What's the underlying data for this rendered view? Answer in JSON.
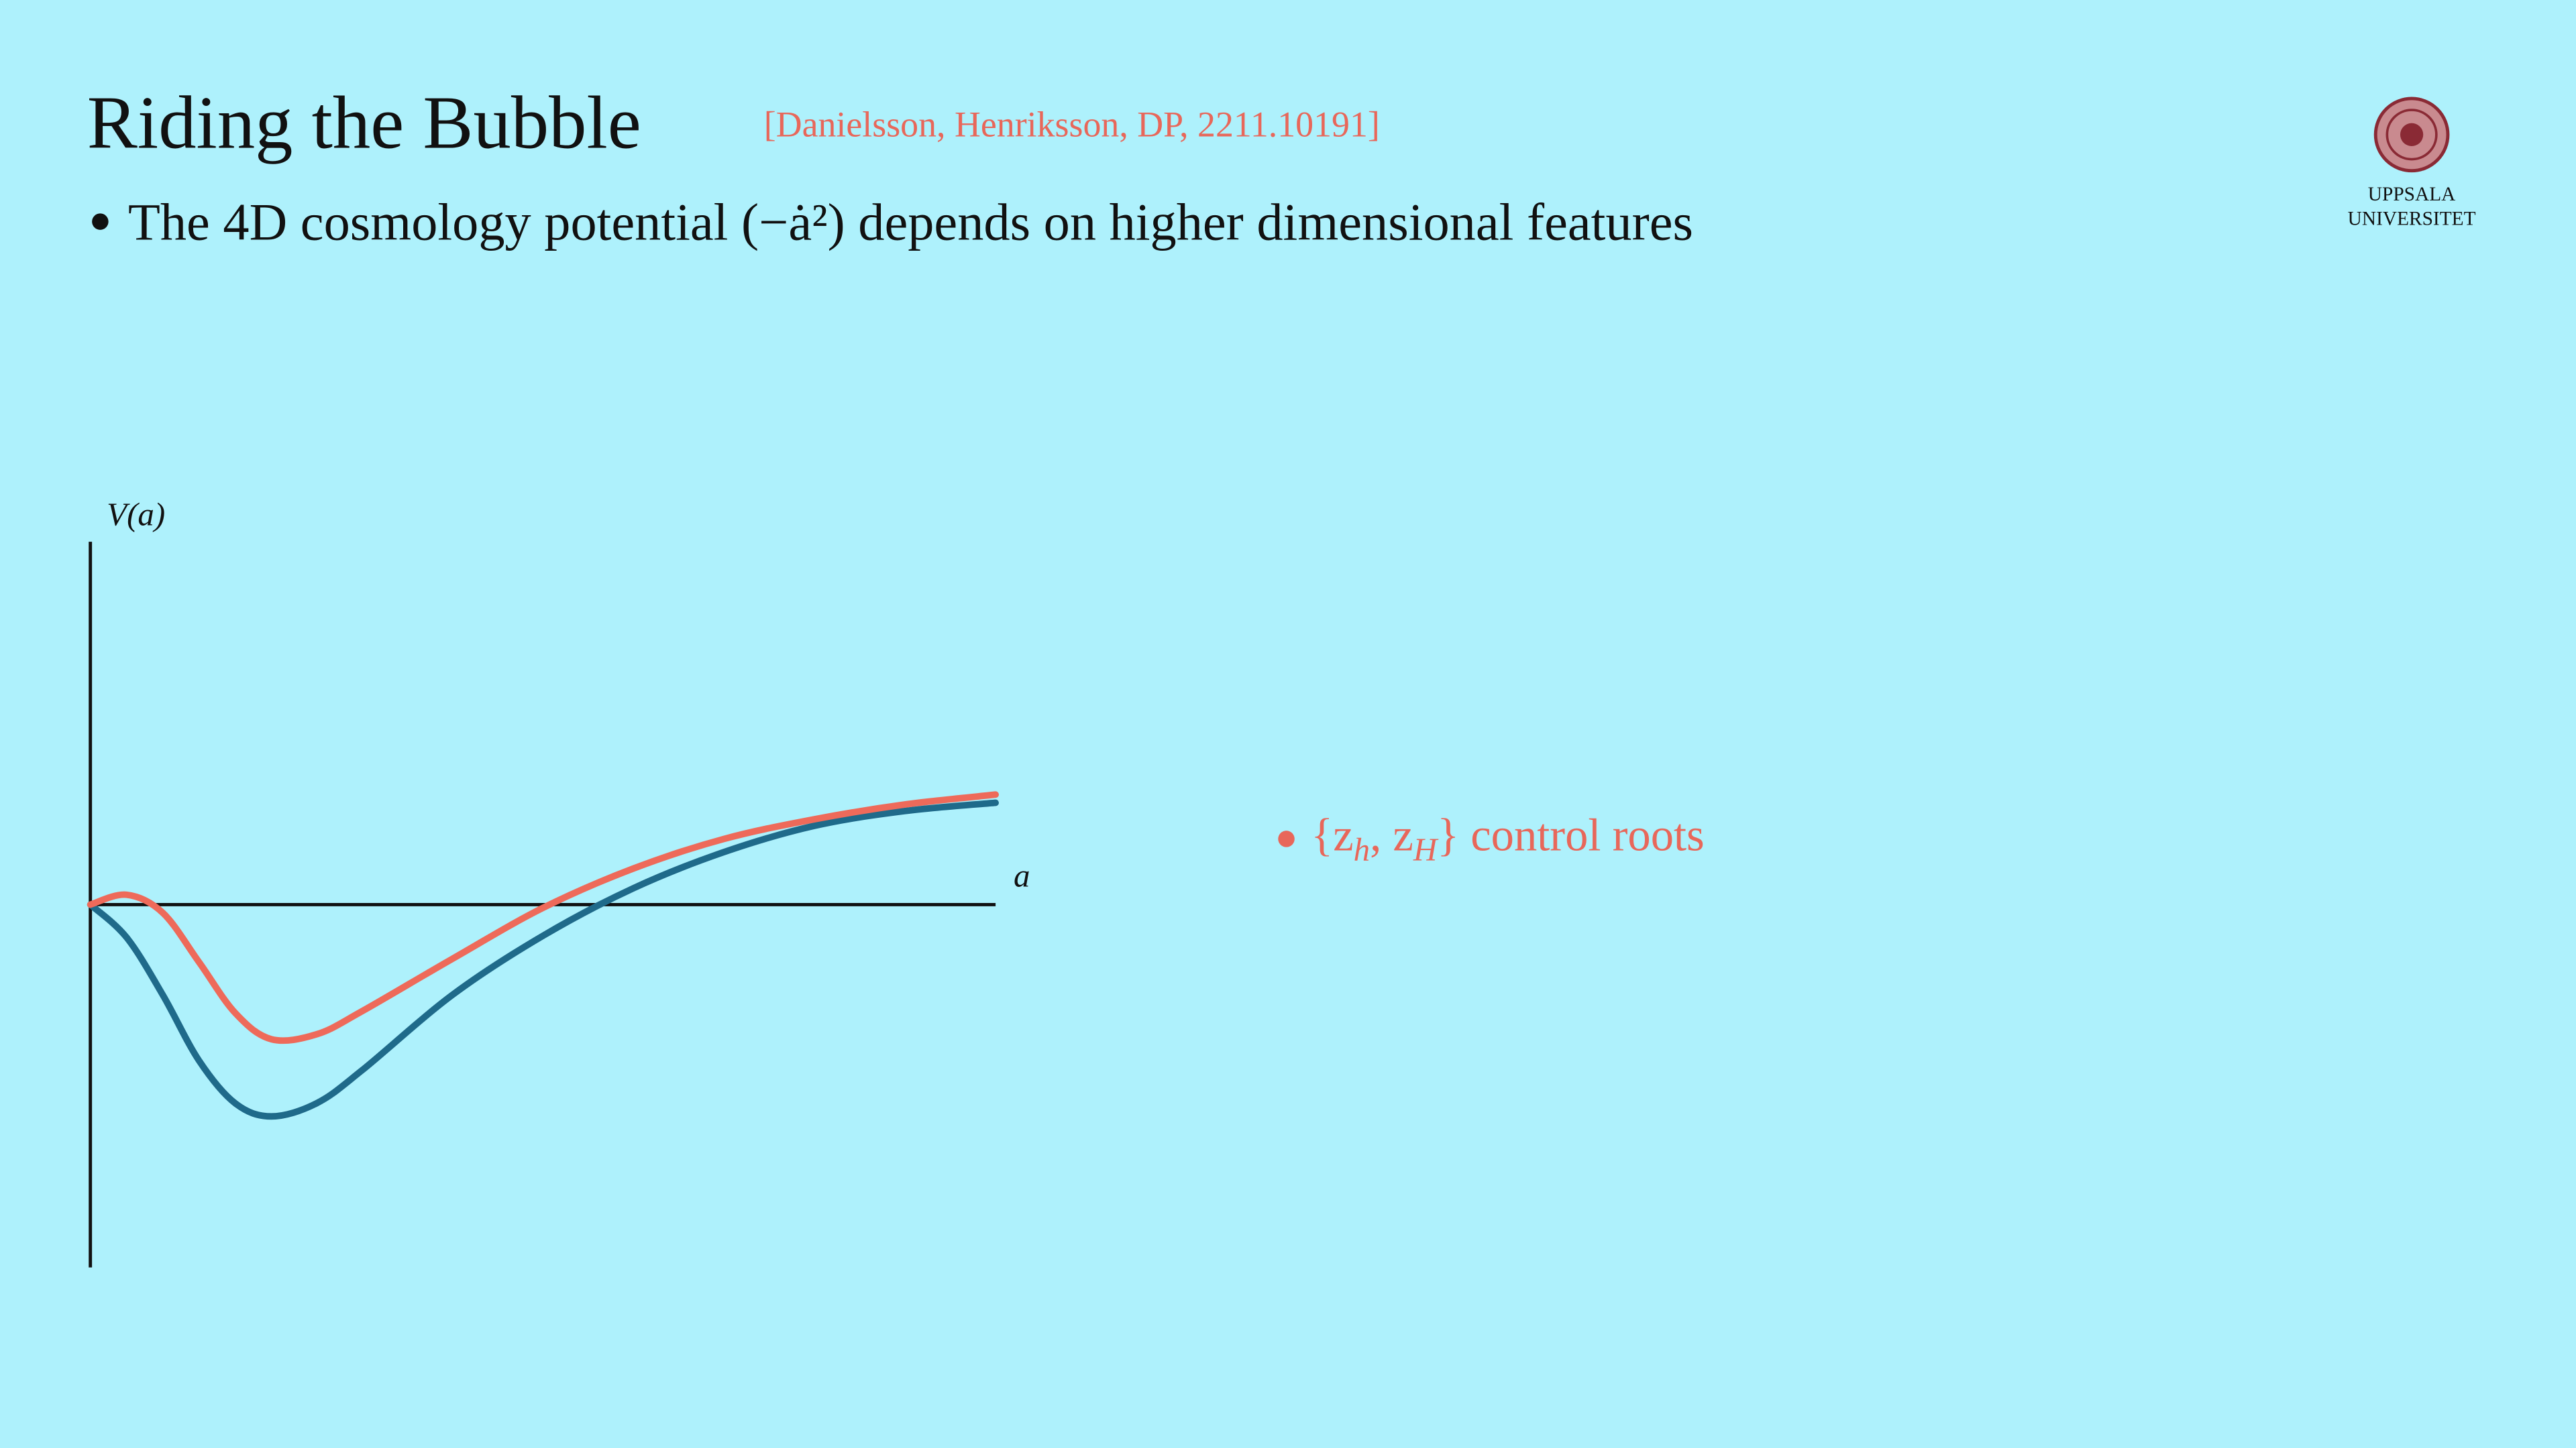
{
  "header": {
    "title": "Riding the Bubble",
    "reference": "[Danielsson, Henriksson, DP, 2211.10191]",
    "bullet": "The 4D cosmology potential (−ȧ²) depends on higher dimensional features"
  },
  "logo": {
    "line1": "UPPSALA",
    "line2": "UNIVERSITET"
  },
  "side_note": {
    "fragments": [
      "{z",
      "h",
      ", z",
      "H",
      "} control roots"
    ]
  },
  "chart_data": {
    "type": "line",
    "y_label": "V(a)",
    "x_label": "a",
    "x": [
      0,
      0.4,
      0.8,
      1.2,
      1.6,
      2,
      2.5,
      3,
      4,
      5,
      6,
      7,
      8,
      9,
      10
    ],
    "xlim": [
      0,
      10
    ],
    "ylim": [
      -2.21,
      2.21
    ],
    "series": [
      {
        "color": "#1f6a8a",
        "values": [
          0,
          -0.2,
          -0.55,
          -0.95,
          -1.21,
          -1.29,
          -1.21,
          -1.01,
          -0.55,
          -0.19,
          0.1,
          0.32,
          0.48,
          0.57,
          0.62
        ]
      },
      {
        "color": "#ee6a5a",
        "values": [
          0,
          0.06,
          -0.05,
          -0.35,
          -0.66,
          -0.82,
          -0.79,
          -0.65,
          -0.33,
          -0.02,
          0.22,
          0.4,
          0.52,
          0.61,
          0.67
        ]
      }
    ]
  }
}
